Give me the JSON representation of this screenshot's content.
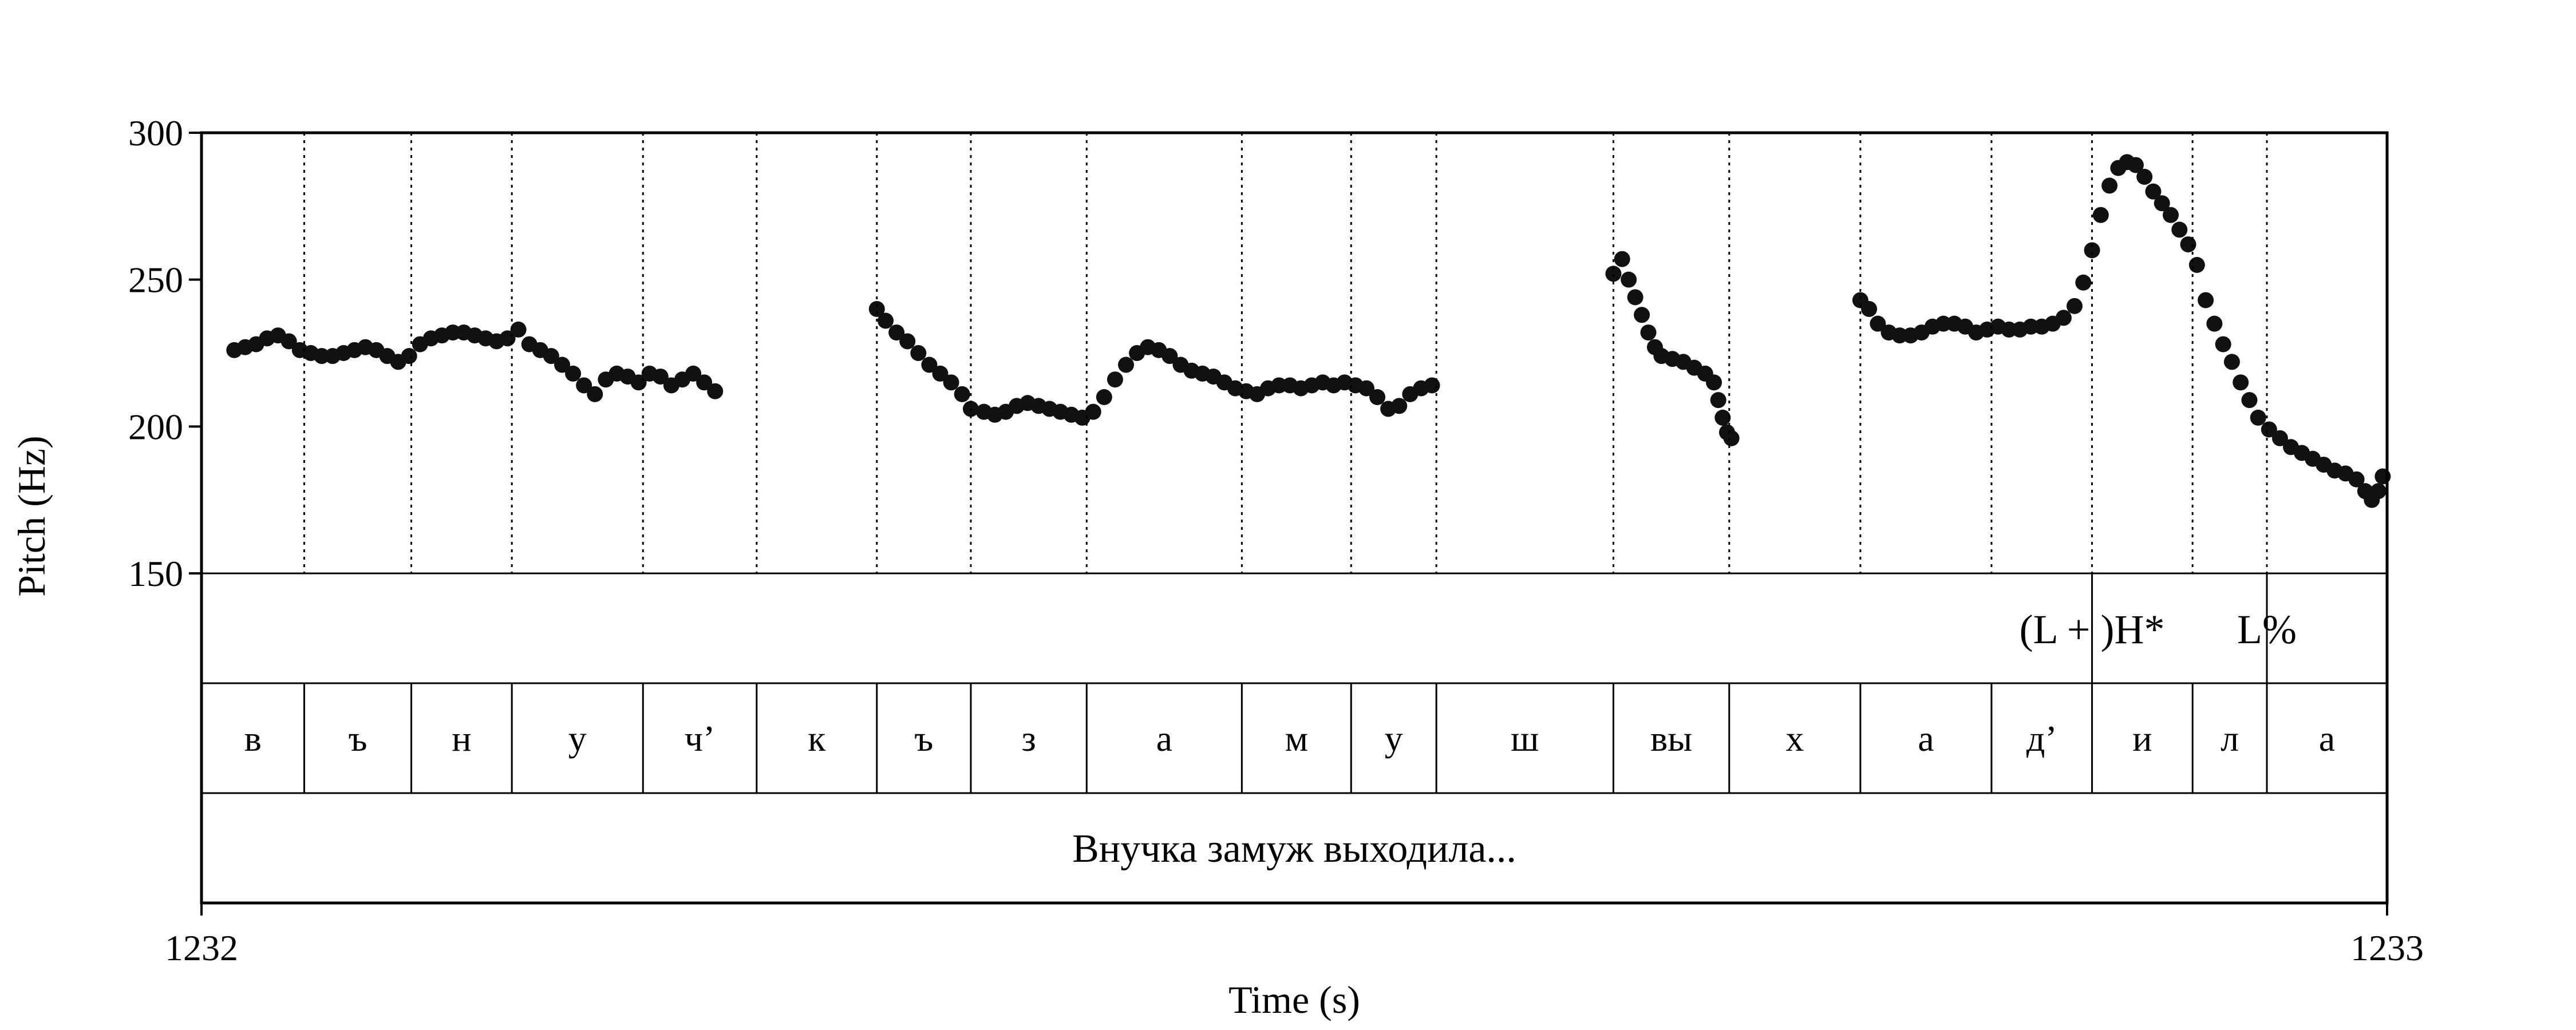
{
  "chart_data": {
    "type": "scatter",
    "title": "",
    "xlabel": "Time (s)",
    "ylabel": "Pitch (Hz)",
    "xlim": [
      1232,
      1233
    ],
    "ylim": [
      150,
      300
    ],
    "x_ticks": [
      "1232",
      "1233"
    ],
    "y_ticks": [
      "150",
      "200",
      "250",
      "300"
    ],
    "grid": false,
    "colors": {
      "points": "#111111",
      "lines": "#000000"
    },
    "segment_boundaries": [
      1232.0,
      1232.047,
      1232.096,
      1232.142,
      1232.202,
      1232.254,
      1232.309,
      1232.352,
      1232.405,
      1232.476,
      1232.526,
      1232.565,
      1232.646,
      1232.699,
      1232.759,
      1232.819,
      1232.865,
      1232.911,
      1232.945,
      1233.0
    ],
    "segments": [
      "в",
      "ъ",
      "н",
      "у",
      "ч’",
      "к",
      "ъ",
      "з",
      "а",
      "м",
      "у",
      "ш",
      "вы",
      "х",
      "а",
      "д’",
      "и",
      "л",
      "а"
    ],
    "tones": [
      {
        "label": "(L + )H*",
        "time": 1232.865
      },
      {
        "label": "L%",
        "time": 1232.945
      }
    ],
    "sentence": "Внучка замуж выходила...",
    "series": [
      {
        "points": [
          [
            1232.015,
            226
          ],
          [
            1232.02,
            227
          ],
          [
            1232.025,
            228
          ],
          [
            1232.03,
            230
          ],
          [
            1232.035,
            231
          ],
          [
            1232.04,
            229
          ],
          [
            1232.045,
            226
          ],
          [
            1232.05,
            225
          ],
          [
            1232.055,
            224
          ],
          [
            1232.06,
            224
          ],
          [
            1232.065,
            225
          ],
          [
            1232.07,
            226
          ],
          [
            1232.075,
            227
          ],
          [
            1232.08,
            226
          ],
          [
            1232.085,
            224
          ],
          [
            1232.09,
            222
          ],
          [
            1232.095,
            224
          ],
          [
            1232.1,
            228
          ],
          [
            1232.105,
            230
          ],
          [
            1232.11,
            231
          ],
          [
            1232.115,
            232
          ],
          [
            1232.12,
            232
          ],
          [
            1232.125,
            231
          ],
          [
            1232.13,
            230
          ],
          [
            1232.135,
            229
          ],
          [
            1232.14,
            230
          ],
          [
            1232.145,
            233
          ],
          [
            1232.15,
            228
          ],
          [
            1232.155,
            226
          ],
          [
            1232.16,
            224
          ],
          [
            1232.165,
            221
          ],
          [
            1232.17,
            218
          ],
          [
            1232.175,
            214
          ],
          [
            1232.18,
            211
          ],
          [
            1232.185,
            216
          ],
          [
            1232.19,
            218
          ],
          [
            1232.195,
            217
          ],
          [
            1232.2,
            215
          ],
          [
            1232.205,
            218
          ],
          [
            1232.21,
            217
          ],
          [
            1232.215,
            214
          ],
          [
            1232.22,
            216
          ],
          [
            1232.225,
            218
          ],
          [
            1232.23,
            215
          ],
          [
            1232.235,
            212
          ]
        ]
      },
      {
        "points": [
          [
            1232.309,
            240
          ],
          [
            1232.313,
            236
          ],
          [
            1232.318,
            232
          ],
          [
            1232.323,
            229
          ],
          [
            1232.328,
            225
          ],
          [
            1232.333,
            221
          ],
          [
            1232.338,
            218
          ],
          [
            1232.343,
            215
          ],
          [
            1232.348,
            211
          ],
          [
            1232.352,
            206
          ],
          [
            1232.358,
            205
          ],
          [
            1232.363,
            204
          ],
          [
            1232.368,
            205
          ],
          [
            1232.373,
            207
          ],
          [
            1232.378,
            208
          ],
          [
            1232.383,
            207
          ],
          [
            1232.388,
            206
          ],
          [
            1232.393,
            205
          ],
          [
            1232.398,
            204
          ],
          [
            1232.403,
            203
          ],
          [
            1232.408,
            205
          ],
          [
            1232.413,
            210
          ],
          [
            1232.418,
            216
          ],
          [
            1232.423,
            221
          ],
          [
            1232.428,
            225
          ],
          [
            1232.433,
            227
          ],
          [
            1232.438,
            226
          ],
          [
            1232.443,
            224
          ],
          [
            1232.448,
            221
          ],
          [
            1232.453,
            219
          ],
          [
            1232.458,
            218
          ],
          [
            1232.463,
            217
          ],
          [
            1232.468,
            215
          ],
          [
            1232.473,
            213
          ],
          [
            1232.478,
            212
          ],
          [
            1232.483,
            211
          ],
          [
            1232.488,
            213
          ],
          [
            1232.493,
            214
          ],
          [
            1232.498,
            214
          ],
          [
            1232.503,
            213
          ],
          [
            1232.508,
            214
          ],
          [
            1232.513,
            215
          ],
          [
            1232.518,
            214
          ],
          [
            1232.523,
            215
          ],
          [
            1232.528,
            214
          ],
          [
            1232.533,
            213
          ],
          [
            1232.538,
            210
          ],
          [
            1232.543,
            206
          ],
          [
            1232.548,
            207
          ],
          [
            1232.553,
            211
          ],
          [
            1232.558,
            213
          ],
          [
            1232.563,
            214
          ]
        ]
      },
      {
        "points": [
          [
            1232.646,
            252
          ],
          [
            1232.65,
            257
          ],
          [
            1232.653,
            250
          ],
          [
            1232.656,
            244
          ],
          [
            1232.659,
            238
          ],
          [
            1232.662,
            232
          ],
          [
            1232.665,
            227
          ],
          [
            1232.668,
            224
          ],
          [
            1232.673,
            223
          ],
          [
            1232.678,
            222
          ],
          [
            1232.683,
            220
          ],
          [
            1232.688,
            218
          ],
          [
            1232.692,
            215
          ],
          [
            1232.694,
            209
          ],
          [
            1232.696,
            203
          ],
          [
            1232.698,
            198
          ],
          [
            1232.7,
            196
          ]
        ]
      },
      {
        "points": [
          [
            1232.759,
            243
          ],
          [
            1232.763,
            240
          ],
          [
            1232.767,
            235
          ],
          [
            1232.772,
            232
          ],
          [
            1232.777,
            231
          ],
          [
            1232.782,
            231
          ],
          [
            1232.787,
            232
          ],
          [
            1232.792,
            234
          ],
          [
            1232.797,
            235
          ],
          [
            1232.802,
            235
          ],
          [
            1232.807,
            234
          ],
          [
            1232.812,
            232
          ],
          [
            1232.817,
            233
          ],
          [
            1232.822,
            234
          ],
          [
            1232.827,
            233
          ],
          [
            1232.832,
            233
          ],
          [
            1232.837,
            234
          ],
          [
            1232.842,
            234
          ],
          [
            1232.847,
            235
          ],
          [
            1232.852,
            237
          ],
          [
            1232.857,
            241
          ],
          [
            1232.861,
            249
          ],
          [
            1232.865,
            260
          ],
          [
            1232.869,
            272
          ],
          [
            1232.873,
            282
          ],
          [
            1232.877,
            288
          ],
          [
            1232.881,
            290
          ],
          [
            1232.885,
            289
          ],
          [
            1232.889,
            285
          ],
          [
            1232.893,
            280
          ],
          [
            1232.897,
            276
          ],
          [
            1232.901,
            272
          ],
          [
            1232.905,
            267
          ],
          [
            1232.909,
            262
          ],
          [
            1232.913,
            255
          ],
          [
            1232.917,
            243
          ],
          [
            1232.921,
            235
          ],
          [
            1232.925,
            228
          ],
          [
            1232.929,
            222
          ],
          [
            1232.933,
            215
          ],
          [
            1232.937,
            209
          ],
          [
            1232.941,
            203
          ],
          [
            1232.946,
            199
          ],
          [
            1232.951,
            196
          ],
          [
            1232.956,
            193
          ],
          [
            1232.961,
            191
          ],
          [
            1232.966,
            189
          ],
          [
            1232.971,
            187
          ],
          [
            1232.976,
            185
          ],
          [
            1232.981,
            184
          ],
          [
            1232.986,
            182
          ],
          [
            1232.99,
            178
          ],
          [
            1232.993,
            175
          ],
          [
            1232.996,
            178
          ],
          [
            1232.998,
            183
          ]
        ]
      }
    ]
  }
}
